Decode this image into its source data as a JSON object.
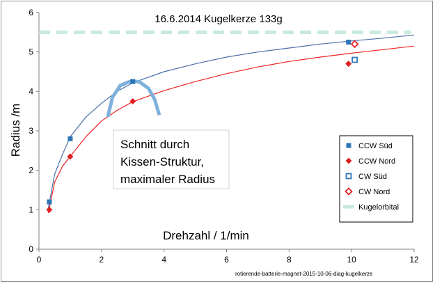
{
  "chart_data": {
    "type": "scatter",
    "title": "16.6.2014 Kugelkerze 133g",
    "xlabel": "Drehzahl /  1/min",
    "ylabel": "Radius /m",
    "xlim": [
      0,
      12
    ],
    "ylim": [
      0,
      6
    ],
    "x_ticks": [
      "0",
      "2",
      "4",
      "6",
      "8",
      "10",
      "12"
    ],
    "y_ticks": [
      "0",
      "1",
      "2",
      "3",
      "4",
      "5",
      "6"
    ],
    "grid": false,
    "legend_position": "right",
    "annotation": [
      "Schnitt durch",
      "Kissen-Struktur,",
      "maximaler Radius"
    ],
    "footnote": "rotierende-batterie-magnet-2015-10-06-diag-kugelkerze",
    "series": [
      {
        "name": "CCW Süd",
        "marker": "filled-square",
        "color": "#2e75b6",
        "points": [
          [
            0.33,
            1.2
          ],
          [
            1.0,
            2.8
          ],
          [
            3.0,
            4.25
          ],
          [
            9.9,
            5.25
          ]
        ]
      },
      {
        "name": "CCW Nord",
        "marker": "filled-diamond",
        "color": "#e02020",
        "points": [
          [
            0.33,
            1.0
          ],
          [
            1.0,
            2.35
          ],
          [
            3.0,
            3.75
          ],
          [
            9.9,
            4.7
          ]
        ]
      },
      {
        "name": "CW Süd",
        "marker": "open-square",
        "color": "#2e75b6",
        "points": [
          [
            10.1,
            4.8
          ]
        ]
      },
      {
        "name": "CW Nord",
        "marker": "open-diamond",
        "color": "#e02020",
        "points": [
          [
            10.1,
            5.2
          ]
        ]
      },
      {
        "name": "Kugelorbital",
        "marker": "dashed-line",
        "color": "#c6eadb",
        "points": [
          [
            0,
            5.5
          ],
          [
            11.9,
            5.5
          ]
        ]
      }
    ],
    "trendlines": [
      {
        "color": "#4a6ea9",
        "x": [
          0.3,
          0.5,
          0.75,
          1.0,
          1.5,
          2.0,
          2.5,
          3.0,
          4.0,
          5.0,
          6.0,
          7.0,
          8.0,
          9.0,
          10.0,
          11.0,
          12.0
        ],
        "y": [
          1.05,
          1.9,
          2.4,
          2.85,
          3.35,
          3.7,
          4.0,
          4.22,
          4.5,
          4.7,
          4.87,
          5.0,
          5.1,
          5.2,
          5.28,
          5.35,
          5.43
        ]
      },
      {
        "color": "#ee2222",
        "x": [
          0.3,
          0.5,
          0.75,
          1.0,
          1.5,
          2.0,
          2.5,
          3.0,
          4.0,
          5.0,
          6.0,
          7.0,
          8.0,
          9.0,
          10.0,
          11.0,
          12.0
        ],
        "y": [
          0.92,
          1.7,
          2.1,
          2.35,
          2.85,
          3.25,
          3.52,
          3.74,
          4.02,
          4.25,
          4.45,
          4.62,
          4.76,
          4.87,
          4.97,
          5.06,
          5.15
        ]
      }
    ],
    "highlight_arc": {
      "color": "#7fb0dc",
      "x": [
        2.2,
        2.35,
        2.6,
        2.9,
        3.2,
        3.5,
        3.7,
        3.85
      ],
      "y": [
        3.35,
        3.85,
        4.15,
        4.25,
        4.25,
        4.08,
        3.8,
        3.4
      ]
    }
  }
}
